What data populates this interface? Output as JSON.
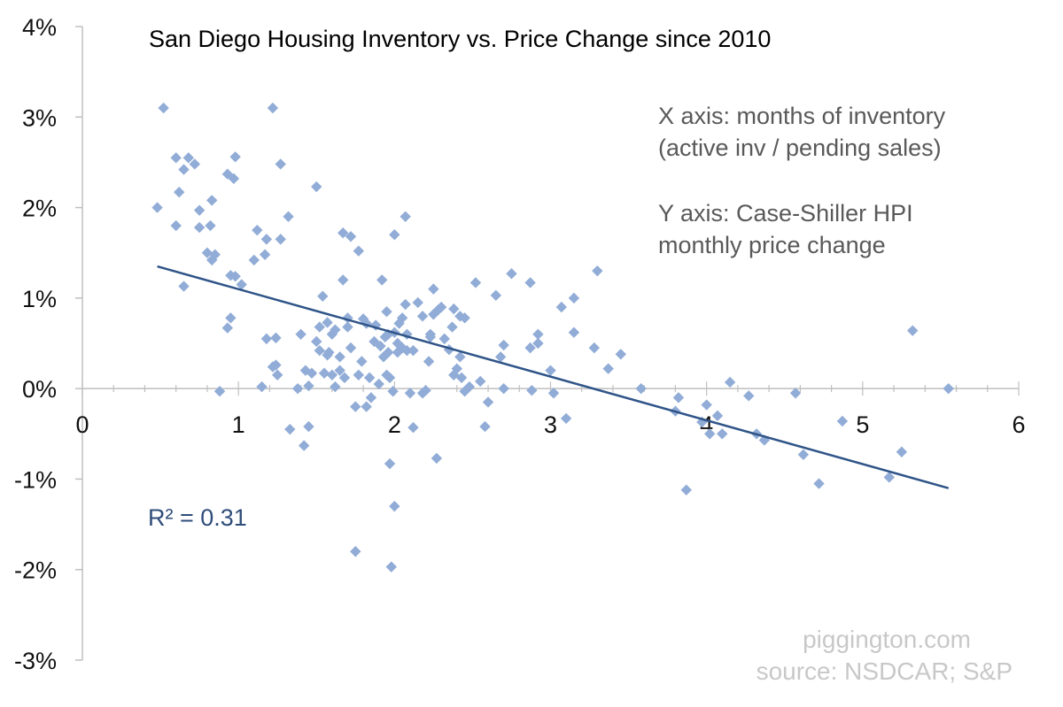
{
  "chart_data": {
    "type": "scatter",
    "title": "San Diego Housing Inventory vs.  Price Change since 2010",
    "xlabel": "",
    "ylabel": "",
    "xlim": [
      0,
      6
    ],
    "ylim": [
      -3,
      4
    ],
    "x_ticks": [
      "0",
      "1",
      "2",
      "3",
      "4",
      "5",
      "6"
    ],
    "y_ticks": [
      "-3%",
      "-2%",
      "-1%",
      "0%",
      "1%",
      "2%",
      "3%",
      "4%"
    ],
    "notes": [
      "X axis: months of inventory",
      "(active inv / pending sales)",
      "Y axis: Case-Shiller HPI",
      "monthly price change"
    ],
    "r_squared_label": "R² = 0.31",
    "trendline": {
      "x": [
        0.48,
        5.55
      ],
      "y": [
        1.35,
        -1.1
      ]
    },
    "series": [
      {
        "points": [
          [
            0.48,
            2.0
          ],
          [
            0.52,
            3.1
          ],
          [
            0.6,
            1.8
          ],
          [
            0.6,
            2.55
          ],
          [
            0.62,
            2.17
          ],
          [
            0.65,
            2.42
          ],
          [
            0.65,
            1.13
          ],
          [
            0.68,
            2.55
          ],
          [
            0.72,
            2.48
          ],
          [
            0.75,
            1.97
          ],
          [
            0.75,
            1.78
          ],
          [
            0.8,
            1.5
          ],
          [
            0.82,
            1.8
          ],
          [
            0.83,
            2.08
          ],
          [
            0.83,
            1.42
          ],
          [
            0.85,
            1.48
          ],
          [
            0.88,
            -0.03
          ],
          [
            0.93,
            2.37
          ],
          [
            0.93,
            0.67
          ],
          [
            0.95,
            1.25
          ],
          [
            0.95,
            0.78
          ],
          [
            0.97,
            2.32
          ],
          [
            0.98,
            2.56
          ],
          [
            0.98,
            1.24
          ],
          [
            1.02,
            1.15
          ],
          [
            1.1,
            1.42
          ],
          [
            1.12,
            1.75
          ],
          [
            1.15,
            0.02
          ],
          [
            1.17,
            1.48
          ],
          [
            1.18,
            0.55
          ],
          [
            1.18,
            1.65
          ],
          [
            1.22,
            3.1
          ],
          [
            1.22,
            0.24
          ],
          [
            1.24,
            0.56
          ],
          [
            1.24,
            0.26
          ],
          [
            1.25,
            0.15
          ],
          [
            1.27,
            2.48
          ],
          [
            1.27,
            1.65
          ],
          [
            1.32,
            1.9
          ],
          [
            1.33,
            -0.45
          ],
          [
            1.38,
            0.0
          ],
          [
            1.4,
            0.6
          ],
          [
            1.42,
            -0.63
          ],
          [
            1.43,
            0.2
          ],
          [
            1.45,
            -0.42
          ],
          [
            1.45,
            0.03
          ],
          [
            1.47,
            0.17
          ],
          [
            1.5,
            2.23
          ],
          [
            1.5,
            0.52
          ],
          [
            1.52,
            0.68
          ],
          [
            1.52,
            0.42
          ],
          [
            1.54,
            1.02
          ],
          [
            1.55,
            0.17
          ],
          [
            1.57,
            0.37
          ],
          [
            1.57,
            0.73
          ],
          [
            1.58,
            0.4
          ],
          [
            1.6,
            0.15
          ],
          [
            1.6,
            0.6
          ],
          [
            1.62,
            0.65
          ],
          [
            1.62,
            0.02
          ],
          [
            1.65,
            0.35
          ],
          [
            1.65,
            0.2
          ],
          [
            1.67,
            1.72
          ],
          [
            1.67,
            1.2
          ],
          [
            1.68,
            0.12
          ],
          [
            1.7,
            0.68
          ],
          [
            1.7,
            0.78
          ],
          [
            1.72,
            1.68
          ],
          [
            1.72,
            0.45
          ],
          [
            1.75,
            -0.2
          ],
          [
            1.75,
            -1.8
          ],
          [
            1.77,
            1.52
          ],
          [
            1.77,
            0.15
          ],
          [
            1.79,
            0.3
          ],
          [
            1.8,
            0.77
          ],
          [
            1.82,
            -0.2
          ],
          [
            1.82,
            0.72
          ],
          [
            1.84,
            0.12
          ],
          [
            1.85,
            -0.1
          ],
          [
            1.87,
            0.52
          ],
          [
            1.88,
            0.7
          ],
          [
            1.9,
            0.05
          ],
          [
            1.91,
            0.47
          ],
          [
            1.92,
            1.2
          ],
          [
            1.93,
            0.35
          ],
          [
            1.94,
            0.57
          ],
          [
            1.95,
            0.15
          ],
          [
            1.95,
            0.85
          ],
          [
            1.96,
            0.4
          ],
          [
            1.96,
            0.6
          ],
          [
            1.97,
            0.12
          ],
          [
            1.97,
            -0.83
          ],
          [
            1.98,
            -1.97
          ],
          [
            1.99,
            -0.03
          ],
          [
            2.0,
            0.62
          ],
          [
            2.0,
            1.7
          ],
          [
            2.0,
            -1.3
          ],
          [
            2.02,
            0.4
          ],
          [
            2.02,
            0.5
          ],
          [
            2.03,
            0.72
          ],
          [
            2.05,
            0.45
          ],
          [
            2.05,
            0.78
          ],
          [
            2.07,
            0.93
          ],
          [
            2.07,
            1.9
          ],
          [
            2.08,
            0.6
          ],
          [
            2.08,
            0.42
          ],
          [
            2.1,
            -0.05
          ],
          [
            2.12,
            0.42
          ],
          [
            2.12,
            -0.43
          ],
          [
            2.15,
            0.95
          ],
          [
            2.18,
            0.8
          ],
          [
            2.18,
            -0.05
          ],
          [
            2.2,
            -0.02
          ],
          [
            2.22,
            0.3
          ],
          [
            2.23,
            0.6
          ],
          [
            2.23,
            0.57
          ],
          [
            2.25,
            0.82
          ],
          [
            2.25,
            1.1
          ],
          [
            2.27,
            -0.77
          ],
          [
            2.28,
            0.87
          ],
          [
            2.3,
            0.9
          ],
          [
            2.32,
            0.55
          ],
          [
            2.35,
            0.43
          ],
          [
            2.37,
            0.68
          ],
          [
            2.38,
            0.88
          ],
          [
            2.38,
            0.15
          ],
          [
            2.4,
            0.22
          ],
          [
            2.42,
            0.8
          ],
          [
            2.42,
            0.35
          ],
          [
            2.43,
            0.12
          ],
          [
            2.45,
            0.78
          ],
          [
            2.45,
            -0.03
          ],
          [
            2.48,
            0.02
          ],
          [
            2.52,
            1.17
          ],
          [
            2.55,
            0.08
          ],
          [
            2.58,
            -0.42
          ],
          [
            2.6,
            -0.15
          ],
          [
            2.65,
            1.03
          ],
          [
            2.68,
            0.35
          ],
          [
            2.7,
            0.48
          ],
          [
            2.7,
            0.0
          ],
          [
            2.75,
            1.27
          ],
          [
            2.87,
            1.17
          ],
          [
            2.87,
            0.45
          ],
          [
            2.88,
            -0.02
          ],
          [
            2.92,
            0.6
          ],
          [
            2.92,
            0.5
          ],
          [
            3.0,
            0.2
          ],
          [
            3.02,
            -0.05
          ],
          [
            3.07,
            0.9
          ],
          [
            3.1,
            -0.33
          ],
          [
            3.15,
            1.0
          ],
          [
            3.15,
            0.62
          ],
          [
            3.28,
            0.45
          ],
          [
            3.3,
            1.3
          ],
          [
            3.37,
            0.22
          ],
          [
            3.45,
            0.38
          ],
          [
            3.58,
            0.0
          ],
          [
            3.8,
            -0.25
          ],
          [
            3.82,
            -0.1
          ],
          [
            3.87,
            -1.12
          ],
          [
            3.97,
            -0.37
          ],
          [
            4.0,
            -0.18
          ],
          [
            4.02,
            -0.5
          ],
          [
            4.07,
            -0.3
          ],
          [
            4.1,
            -0.5
          ],
          [
            4.15,
            0.07
          ],
          [
            4.27,
            -0.08
          ],
          [
            4.32,
            -0.5
          ],
          [
            4.37,
            -0.57
          ],
          [
            4.57,
            -0.05
          ],
          [
            4.62,
            -0.73
          ],
          [
            4.72,
            -1.05
          ],
          [
            4.87,
            -0.36
          ],
          [
            5.17,
            -0.98
          ],
          [
            5.25,
            -0.7
          ],
          [
            5.32,
            0.64
          ],
          [
            5.55,
            0.0
          ]
        ]
      }
    ],
    "watermark": [
      "piggington.com",
      "source: NSDCAR; S&P"
    ],
    "colors": {
      "points": "#91acd6",
      "trendline": "#2f5488",
      "axis": "#bfbfbf",
      "r2_text": "#2f4d7a"
    },
    "grid": false
  }
}
